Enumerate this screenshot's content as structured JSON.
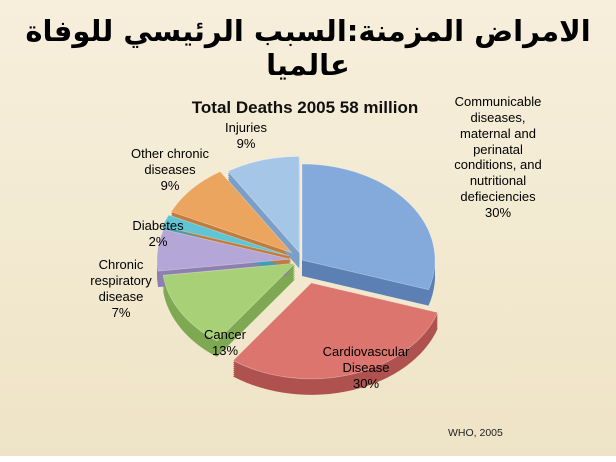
{
  "slide": {
    "title_ar": "الامراض المزمنة:السبب الرئيسي للوفاة عالميا"
  },
  "chart_data": {
    "type": "pie",
    "title": "Total Deaths 2005 58 million",
    "total_deaths_million": 58,
    "unit": "%",
    "labels_position": "around",
    "style": "3d-exploded",
    "slices": [
      {
        "label": "Communicable diseases, maternal and perinatal conditions, and nutritional defieciencies",
        "value": 30,
        "color": "#83aada",
        "dark": "#5c80b4"
      },
      {
        "label": "Cardiovascular Disease",
        "value": 30,
        "color": "#dc756e",
        "dark": "#af524f"
      },
      {
        "label": "Cancer",
        "value": 13,
        "color": "#a7d077",
        "dark": "#7fa853"
      },
      {
        "label": "Chronic respiratory disease",
        "value": 7,
        "color": "#b4a6d6",
        "dark": "#8d7fb0"
      },
      {
        "label": "Diabetes",
        "value": 2,
        "color": "#5fc4d4",
        "dark": "#3f9fb0"
      },
      {
        "label": "Other chronic diseases",
        "value": 9,
        "color": "#eca55e",
        "dark": "#c07c3c"
      },
      {
        "label": "Injuries",
        "value": 9,
        "color": "#a6c6e8",
        "dark": "#7b9fc6"
      }
    ],
    "callouts": {
      "communicable": "Communicable\ndiseases,\nmaternal and\nperinatal\nconditions, and\nnutritional\ndefieciencies\n30%",
      "injuries": "Injuries\n9%",
      "other_chronic": "Other chronic\ndiseases\n9%",
      "diabetes": "Diabetes\n2%",
      "respiratory": "Chronic\nrespiratory\ndisease\n7%",
      "cancer": "Cancer\n13%",
      "cardiovascular": "Cardiovascular\nDisease\n30%"
    },
    "source": "WHO, 2005"
  }
}
